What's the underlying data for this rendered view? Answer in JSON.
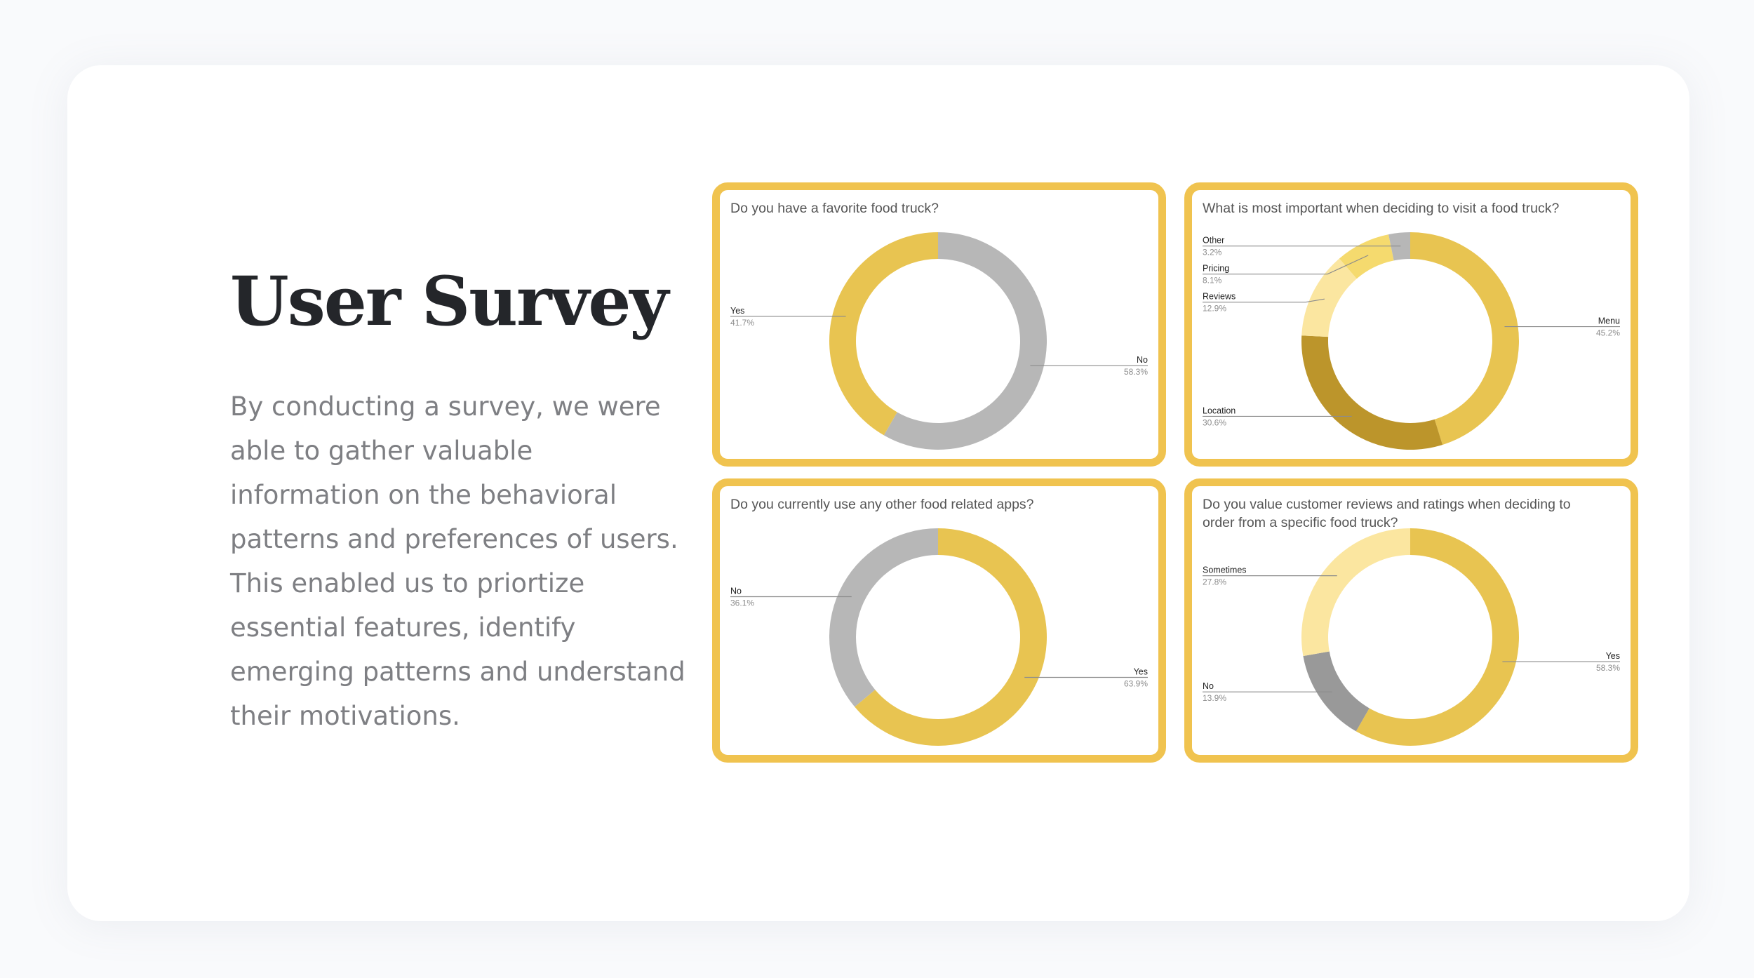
{
  "heading": {
    "title": "User Survey"
  },
  "intro": {
    "text": "By conducting a survey, we were able to gather valuable information on the behavioral patterns and preferences of users. This enabled us to priortize essential features, identify emerging patterns and understand their motivations."
  },
  "colors": {
    "panel_border": "#f0c34f",
    "yellow": "#e8c451",
    "gray": "#b7b7b7",
    "dark_gray": "#999999",
    "dark_gold": "#bc952b",
    "light_yellow": "#fbe6a0",
    "pale_yellow": "#f5da6e",
    "title_text": "#24262a",
    "body_text": "#7e7f83"
  },
  "chart_data": [
    {
      "type": "pie",
      "style": "donut",
      "title_lines": [
        "Do you have a favorite food truck?"
      ],
      "slices": [
        {
          "label": "No",
          "value": 58.3,
          "display": "58.3%",
          "color": "#b7b7b7"
        },
        {
          "label": "Yes",
          "value": 41.7,
          "display": "41.7%",
          "color": "#e8c451"
        }
      ]
    },
    {
      "type": "pie",
      "style": "donut",
      "title_lines": [
        "What is most important when deciding to visit a food truck?"
      ],
      "slices": [
        {
          "label": "Menu",
          "value": 45.2,
          "display": "45.2%",
          "color": "#e8c451"
        },
        {
          "label": "Location",
          "value": 30.6,
          "display": "30.6%",
          "color": "#bc952b"
        },
        {
          "label": "Reviews",
          "value": 12.9,
          "display": "12.9%",
          "color": "#fbe6a0"
        },
        {
          "label": "Pricing",
          "value": 8.1,
          "display": "8.1%",
          "color": "#f5da6e"
        },
        {
          "label": "Other",
          "value": 3.2,
          "display": "3.2%",
          "color": "#b7b7b7"
        }
      ]
    },
    {
      "type": "pie",
      "style": "donut",
      "title_lines": [
        "Do you currently use any other food related apps?"
      ],
      "slices": [
        {
          "label": "Yes",
          "value": 63.9,
          "display": "63.9%",
          "color": "#e8c451"
        },
        {
          "label": "No",
          "value": 36.1,
          "display": "36.1%",
          "color": "#b7b7b7"
        }
      ]
    },
    {
      "type": "pie",
      "style": "donut",
      "title_lines": [
        "Do you value customer reviews and ratings when deciding to",
        "order from a specific food truck?"
      ],
      "slices": [
        {
          "label": "Yes",
          "value": 58.3,
          "display": "58.3%",
          "color": "#e8c451"
        },
        {
          "label": "No",
          "value": 13.9,
          "display": "13.9%",
          "color": "#999999"
        },
        {
          "label": "Sometimes",
          "value": 27.8,
          "display": "27.8%",
          "color": "#fbe6a0"
        }
      ]
    }
  ]
}
